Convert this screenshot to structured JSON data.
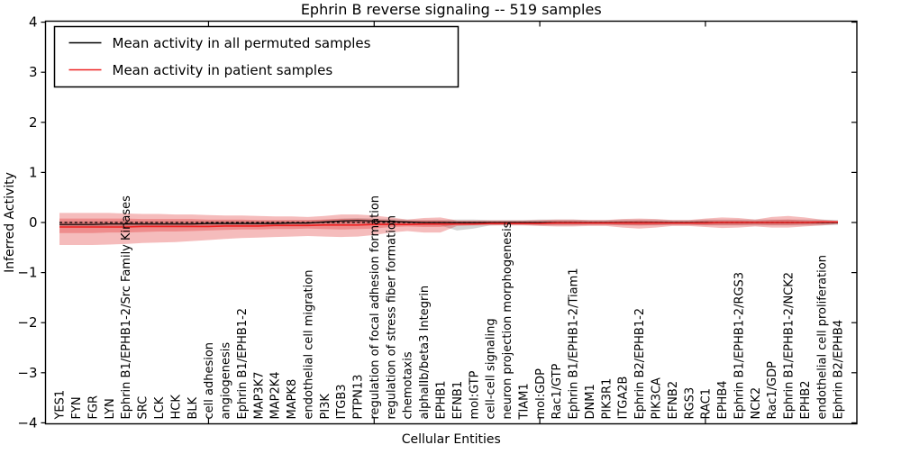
{
  "chart_data": {
    "type": "line",
    "title": "Ephrin B reverse signaling -- 519 samples",
    "xlabel": "Cellular Entities",
    "ylabel": "Inferred Activity",
    "ylim": [
      -4,
      4
    ],
    "grid": false,
    "ytick_values": [
      4,
      3,
      2,
      1,
      0,
      -1,
      -2,
      -3,
      -4
    ],
    "ytick_labels": [
      "4",
      "3",
      "2",
      "1",
      "0",
      "−1",
      "−2",
      "−3",
      "−4"
    ],
    "x_major_tick_indices": [
      9,
      19,
      29,
      39
    ],
    "legend": {
      "position": "upper left",
      "entries": [
        {
          "label": "Mean activity in all permuted samples",
          "color": "#000000"
        },
        {
          "label": "Mean activity in patient samples",
          "color": "#ee2222"
        }
      ]
    },
    "categories": [
      "YES1",
      "FYN",
      "FGR",
      "LYN",
      "Ephrin B1/EPHB1-2/Src Family Kinases",
      "SRC",
      "LCK",
      "HCK",
      "BLK",
      "cell adhesion",
      "angiogenesis",
      "Ephrin B1/EPHB1-2",
      "MAP3K7",
      "MAP2K4",
      "MAPK8",
      "endothelial cell migration",
      "PI3K",
      "ITGB3",
      "PTPN13",
      "regulation of focal adhesion formation",
      "regulation of stress fiber formation",
      "chemotaxis",
      "alphaIIb/beta3 Integrin",
      "EPHB1",
      "EFNB1",
      "mol:GTP",
      "cell-cell signaling",
      "neuron projection morphogenesis",
      "TIAM1",
      "mol:GDP",
      "Rac1/GTP",
      "Ephrin B1/EPHB1-2/Tiam1",
      "DNM1",
      "PIK3R1",
      "ITGA2B",
      "Ephrin B2/EPHB1-2",
      "PIK3CA",
      "EFNB2",
      "RGS3",
      "RAC1",
      "EPHB4",
      "Ephrin B1/EPHB1-2/RGS3",
      "NCK2",
      "Rac1/GDP",
      "Ephrin B1/EPHB1-2/NCK2",
      "EPHB2",
      "endothelial cell proliferation",
      "Ephrin B2/EPHB4"
    ],
    "series": [
      {
        "name": "Mean activity in all permuted samples",
        "color": "#000000",
        "style": "solid",
        "width": 1.2,
        "values": [
          -0.04,
          -0.04,
          -0.04,
          -0.03,
          -0.03,
          -0.03,
          -0.03,
          -0.03,
          -0.03,
          -0.02,
          -0.02,
          -0.02,
          -0.02,
          -0.02,
          -0.01,
          -0.01,
          0.01,
          0.03,
          0.04,
          0.03,
          0.02,
          0.01,
          0.0,
          0.0,
          0.0,
          0.0,
          0.0,
          0.0,
          0.0,
          0.0,
          0.0,
          0.0,
          0.0,
          0.0,
          0.0,
          0.0,
          0.0,
          0.0,
          0.0,
          0.0,
          0.0,
          0.0,
          0.0,
          0.0,
          0.0,
          0.0,
          0.0,
          0.0
        ]
      },
      {
        "name": "Mean activity in patient samples",
        "color": "#ee2222",
        "style": "solid",
        "width": 1.6,
        "values": [
          -0.09,
          -0.09,
          -0.09,
          -0.09,
          -0.09,
          -0.08,
          -0.08,
          -0.08,
          -0.08,
          -0.08,
          -0.07,
          -0.07,
          -0.07,
          -0.06,
          -0.06,
          -0.06,
          -0.05,
          -0.05,
          -0.05,
          -0.04,
          -0.04,
          -0.04,
          -0.03,
          -0.03,
          -0.03,
          -0.03,
          -0.02,
          -0.02,
          -0.02,
          -0.02,
          -0.01,
          -0.01,
          -0.01,
          -0.01,
          -0.01,
          -0.01,
          -0.01,
          -0.01,
          -0.01,
          -0.01,
          0.0,
          0.0,
          0.0,
          0.0,
          0.0,
          0.0,
          0.01,
          0.01
        ]
      }
    ],
    "bands": [
      {
        "name": "permuted-samples-range",
        "color": "#888888",
        "opacity": 0.35,
        "upper": [
          0.02,
          0.02,
          0.02,
          0.02,
          0.02,
          0.02,
          0.02,
          0.02,
          0.02,
          0.03,
          0.03,
          0.03,
          0.03,
          0.03,
          0.04,
          0.04,
          0.06,
          0.08,
          0.09,
          0.08,
          0.07,
          0.06,
          0.05,
          0.05,
          0.06,
          0.06,
          0.05,
          0.05,
          0.05,
          0.06,
          0.06,
          0.06,
          0.05,
          0.05,
          0.06,
          0.06,
          0.06,
          0.05,
          0.05,
          0.06,
          0.06,
          0.06,
          0.06,
          0.06,
          0.06,
          0.06,
          0.06,
          0.05
        ],
        "lower": [
          -0.09,
          -0.09,
          -0.09,
          -0.09,
          -0.09,
          -0.08,
          -0.08,
          -0.08,
          -0.08,
          -0.08,
          -0.07,
          -0.07,
          -0.07,
          -0.07,
          -0.06,
          -0.06,
          -0.05,
          -0.03,
          -0.02,
          -0.03,
          -0.04,
          -0.05,
          -0.06,
          -0.06,
          -0.16,
          -0.12,
          -0.06,
          -0.05,
          -0.05,
          -0.06,
          -0.06,
          -0.06,
          -0.05,
          -0.05,
          -0.06,
          -0.06,
          -0.06,
          -0.05,
          -0.05,
          -0.06,
          -0.06,
          -0.06,
          -0.06,
          -0.06,
          -0.06,
          -0.06,
          -0.06,
          -0.05
        ]
      },
      {
        "name": "patient-samples-range-outer",
        "color": "#dd2222",
        "opacity": 0.3,
        "upper": [
          0.19,
          0.19,
          0.19,
          0.19,
          0.18,
          0.17,
          0.17,
          0.16,
          0.16,
          0.15,
          0.14,
          0.14,
          0.13,
          0.12,
          0.12,
          0.11,
          0.13,
          0.16,
          0.16,
          0.14,
          0.1,
          0.06,
          0.09,
          0.1,
          0.04,
          0.04,
          0.04,
          0.04,
          0.04,
          0.05,
          0.06,
          0.06,
          0.05,
          0.05,
          0.07,
          0.08,
          0.07,
          0.05,
          0.05,
          0.08,
          0.1,
          0.09,
          0.06,
          0.11,
          0.13,
          0.1,
          0.06,
          0.03
        ],
        "lower": [
          -0.45,
          -0.45,
          -0.45,
          -0.44,
          -0.43,
          -0.41,
          -0.4,
          -0.39,
          -0.37,
          -0.35,
          -0.33,
          -0.31,
          -0.3,
          -0.29,
          -0.28,
          -0.27,
          -0.28,
          -0.29,
          -0.28,
          -0.25,
          -0.2,
          -0.17,
          -0.2,
          -0.2,
          -0.07,
          -0.06,
          -0.06,
          -0.06,
          -0.06,
          -0.07,
          -0.08,
          -0.08,
          -0.07,
          -0.07,
          -0.1,
          -0.12,
          -0.1,
          -0.07,
          -0.07,
          -0.09,
          -0.11,
          -0.1,
          -0.08,
          -0.1,
          -0.1,
          -0.08,
          -0.06,
          -0.03
        ]
      },
      {
        "name": "patient-samples-range-inner",
        "color": "#dd2222",
        "opacity": 0.3,
        "upper": [
          0.08,
          0.08,
          0.08,
          0.08,
          0.08,
          0.07,
          0.07,
          0.07,
          0.07,
          0.06,
          0.06,
          0.06,
          0.05,
          0.05,
          0.05,
          0.05,
          0.06,
          0.07,
          0.07,
          0.06,
          0.04,
          0.03,
          0.04,
          0.04,
          0.02,
          0.02,
          0.02,
          0.02,
          0.02,
          0.02,
          0.03,
          0.03,
          0.02,
          0.02,
          0.03,
          0.04,
          0.03,
          0.02,
          0.02,
          0.04,
          0.04,
          0.04,
          0.03,
          0.05,
          0.06,
          0.04,
          0.03,
          0.02
        ],
        "lower": [
          -0.21,
          -0.21,
          -0.21,
          -0.2,
          -0.2,
          -0.19,
          -0.18,
          -0.18,
          -0.17,
          -0.16,
          -0.15,
          -0.14,
          -0.14,
          -0.13,
          -0.13,
          -0.12,
          -0.13,
          -0.14,
          -0.13,
          -0.12,
          -0.09,
          -0.08,
          -0.09,
          -0.09,
          -0.04,
          -0.03,
          -0.03,
          -0.03,
          -0.03,
          -0.04,
          -0.04,
          -0.04,
          -0.04,
          -0.04,
          -0.05,
          -0.06,
          -0.05,
          -0.04,
          -0.04,
          -0.05,
          -0.05,
          -0.05,
          -0.04,
          -0.05,
          -0.05,
          -0.04,
          -0.03,
          -0.02
        ]
      }
    ],
    "zero_line": {
      "y": 0,
      "style": "dashed",
      "color": "#000000"
    }
  }
}
